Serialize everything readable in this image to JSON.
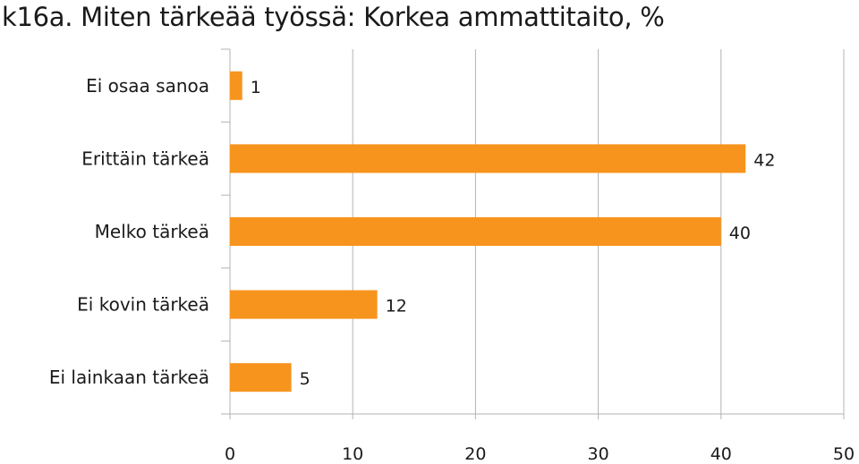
{
  "chart_data": {
    "type": "bar",
    "orientation": "horizontal",
    "title": "k16a. Miten tärkeää työssä: Korkea ammattitaito, %",
    "categories": [
      "Ei osaa sanoa",
      "Erittäin tärkeä",
      "Melko tärkeä",
      "Ei kovin tärkeä",
      "Ei lainkaan tärkeä"
    ],
    "values": [
      1,
      42,
      40,
      12,
      5
    ],
    "xlim": [
      0,
      50
    ],
    "xticks": [
      0,
      10,
      20,
      30,
      40,
      50
    ],
    "grid": true,
    "bar_color": "#F7941D",
    "grid_color": "#b3b3b3"
  }
}
